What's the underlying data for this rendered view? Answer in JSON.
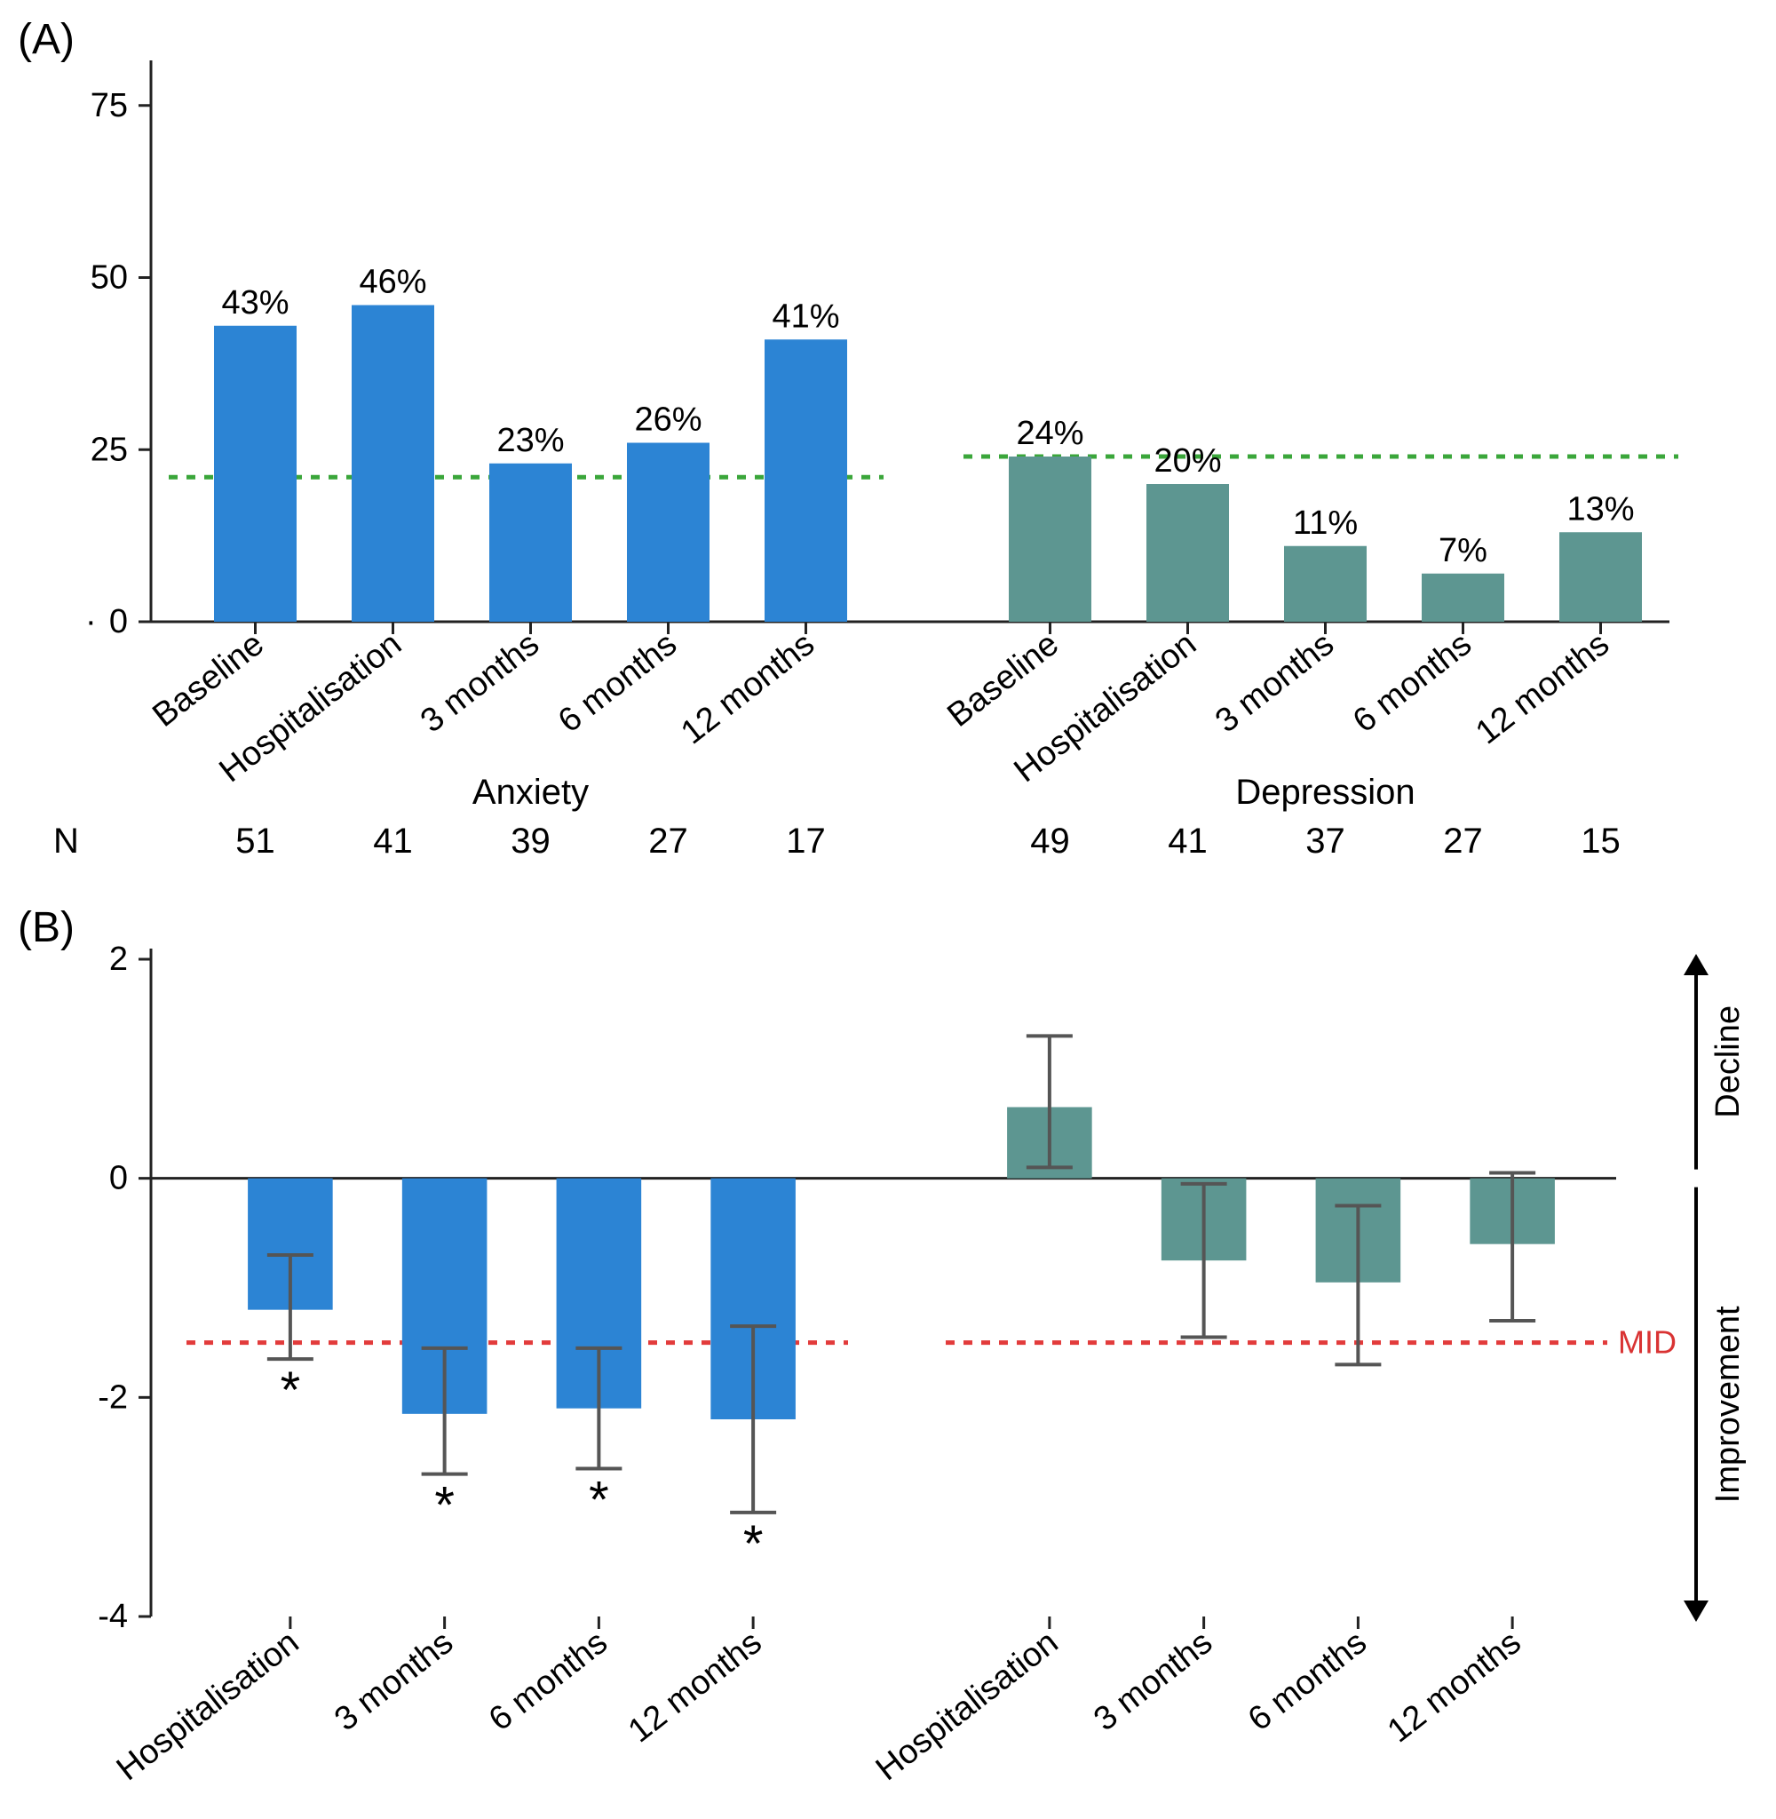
{
  "panelA": {
    "label": "(A)",
    "type": "bar",
    "ylim": [
      0,
      80
    ],
    "yticks": [
      0,
      25,
      50,
      75
    ],
    "refline_y": 21,
    "refline_color": "#3aa63a",
    "refline_dash": "10,10",
    "axis_color": "#222222",
    "groups": [
      {
        "name": "Anxiety",
        "color": "#2c84d4",
        "categories": [
          "Baseline",
          "Hospitalisation",
          "3 months",
          "6 months",
          "12 months"
        ],
        "values": [
          43,
          46,
          23,
          26,
          41
        ],
        "value_labels": [
          "43%",
          "46%",
          "23%",
          "26%",
          "41%"
        ],
        "n": [
          51,
          41,
          39,
          27,
          17
        ]
      },
      {
        "name": "Depression",
        "color": "#5d9691",
        "refline_y": 24,
        "categories": [
          "Baseline",
          "Hospitalisation",
          "3 months",
          "6 months",
          "12 months"
        ],
        "values": [
          24,
          20,
          11,
          7,
          13
        ],
        "value_labels": [
          "24%",
          "20%",
          "11%",
          "7%",
          "13%"
        ],
        "n": [
          49,
          41,
          37,
          27,
          15
        ]
      }
    ],
    "n_label": "N"
  },
  "panelB": {
    "label": "(B)",
    "type": "bar-with-error",
    "ylim": [
      -4,
      2
    ],
    "yticks": [
      -4,
      -2,
      0,
      2
    ],
    "mid_y": -1.5,
    "mid_color": "#e23b3b",
    "mid_dash": "10,10",
    "mid_label": "MID",
    "axis_color": "#222222",
    "decline_label": "Decline",
    "improvement_label": "Improvement",
    "groups": [
      {
        "color": "#2c84d4",
        "categories": [
          "Hospitalisation",
          "3 months",
          "6 months",
          "12 months"
        ],
        "values": [
          -1.2,
          -2.15,
          -2.1,
          -2.2
        ],
        "err_low": [
          -1.65,
          -2.7,
          -2.65,
          -3.05
        ],
        "err_high": [
          -0.7,
          -1.55,
          -1.55,
          -1.35
        ],
        "sig": [
          "*",
          "*",
          "*",
          "*"
        ]
      },
      {
        "color": "#5d9691",
        "categories": [
          "Hospitalisation",
          "3 months",
          "6 months",
          "12 months"
        ],
        "values": [
          0.65,
          -0.75,
          -0.95,
          -0.6
        ],
        "err_low": [
          0.1,
          -1.45,
          -1.7,
          -1.3
        ],
        "err_high": [
          1.3,
          -0.05,
          -0.25,
          0.05
        ],
        "sig": [
          "",
          "",
          "",
          ""
        ]
      }
    ]
  },
  "style": {
    "bar_width": 0.6,
    "label_fontsize": 38,
    "tick_fontsize": 38,
    "panel_label_fontsize": 48
  }
}
